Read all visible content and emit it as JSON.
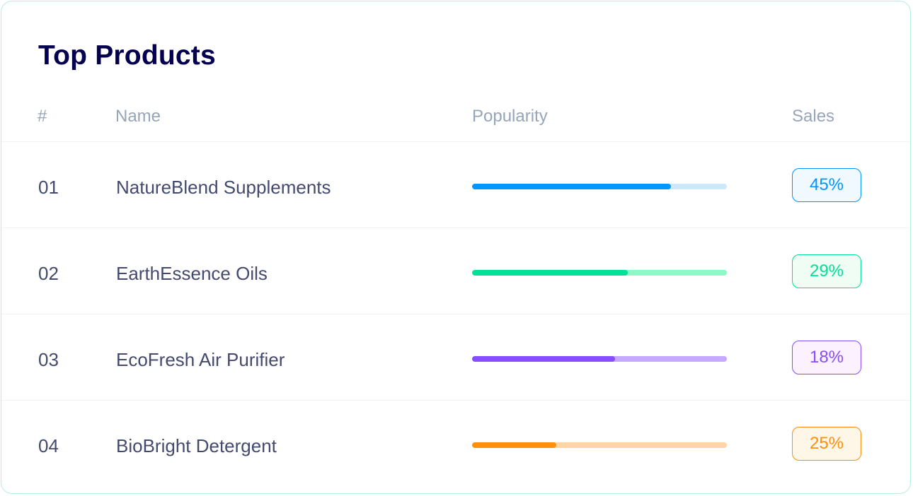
{
  "card": {
    "title": "Top Products"
  },
  "table": {
    "columns": {
      "rank": "#",
      "name": "Name",
      "popularity": "Popularity",
      "sales": "Sales"
    },
    "rows": [
      {
        "rank": "01",
        "name": "NatureBlend Supplements",
        "popularity": 0.78,
        "sales": "45%",
        "theme": "blue",
        "color": "#0095ff"
      },
      {
        "rank": "02",
        "name": "EarthEssence Oils",
        "popularity": 0.61,
        "sales": "29%",
        "theme": "green",
        "color": "#00e096"
      },
      {
        "rank": "03",
        "name": "EcoFresh Air Purifier",
        "popularity": 0.56,
        "sales": "18%",
        "theme": "purple",
        "color": "#884dff"
      },
      {
        "rank": "04",
        "name": "BioBright Detergent",
        "popularity": 0.33,
        "sales": "25%",
        "theme": "orange",
        "color": "#ff8f0d"
      }
    ]
  }
}
